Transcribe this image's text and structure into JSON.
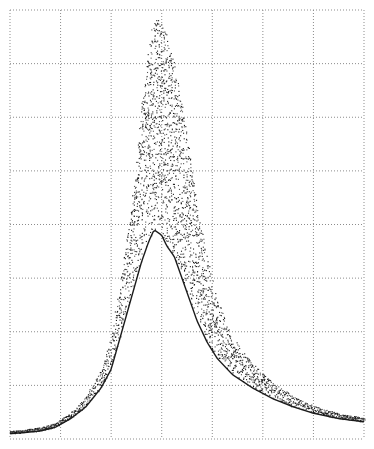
{
  "colors": {
    "background": "#ffffff",
    "grid": "#8c8c8c",
    "trace": "#1a1a1a",
    "trace_light": "#555555"
  },
  "chart_data": {
    "type": "line",
    "title": "",
    "xlabel": "",
    "ylabel": "",
    "grid": true,
    "grid_style": "dotted",
    "xlim": [
      0,
      7
    ],
    "ylim": [
      0,
      8
    ],
    "x_divisions": 7,
    "y_divisions": 8,
    "series": [
      {
        "style": "dense-noisy-trace",
        "upper_envelope": [
          [
            0.0,
            0.15
          ],
          [
            0.3,
            0.18
          ],
          [
            0.6,
            0.22
          ],
          [
            0.9,
            0.3
          ],
          [
            1.2,
            0.5
          ],
          [
            1.5,
            0.8
          ],
          [
            1.8,
            1.3
          ],
          [
            2.0,
            1.9
          ],
          [
            2.15,
            2.8
          ],
          [
            2.3,
            3.7
          ],
          [
            2.45,
            4.8
          ],
          [
            2.6,
            6.2
          ],
          [
            2.75,
            7.4
          ],
          [
            2.85,
            7.9
          ],
          [
            3.0,
            7.75
          ],
          [
            3.1,
            7.5
          ],
          [
            3.25,
            7.0
          ],
          [
            3.4,
            6.2
          ],
          [
            3.55,
            5.4
          ],
          [
            3.7,
            4.3
          ],
          [
            3.9,
            3.4
          ],
          [
            4.1,
            2.6
          ],
          [
            4.4,
            1.9
          ],
          [
            4.8,
            1.4
          ],
          [
            5.2,
            1.05
          ],
          [
            5.6,
            0.8
          ],
          [
            6.0,
            0.62
          ],
          [
            6.5,
            0.48
          ],
          [
            7.0,
            0.4
          ]
        ],
        "lower_envelope": [
          [
            0.0,
            0.1
          ],
          [
            0.3,
            0.12
          ],
          [
            0.6,
            0.15
          ],
          [
            0.9,
            0.22
          ],
          [
            1.2,
            0.38
          ],
          [
            1.5,
            0.6
          ],
          [
            1.8,
            0.95
          ],
          [
            2.0,
            1.3
          ],
          [
            2.15,
            1.8
          ],
          [
            2.3,
            2.3
          ],
          [
            2.45,
            2.8
          ],
          [
            2.6,
            3.3
          ],
          [
            2.75,
            3.7
          ],
          [
            2.85,
            3.9
          ],
          [
            3.0,
            3.8
          ],
          [
            3.1,
            3.6
          ],
          [
            3.25,
            3.4
          ],
          [
            3.4,
            3.0
          ],
          [
            3.55,
            2.6
          ],
          [
            3.7,
            2.2
          ],
          [
            3.9,
            1.8
          ],
          [
            4.1,
            1.5
          ],
          [
            4.4,
            1.2
          ],
          [
            4.8,
            0.95
          ],
          [
            5.2,
            0.75
          ],
          [
            5.6,
            0.6
          ],
          [
            6.0,
            0.48
          ],
          [
            6.5,
            0.38
          ],
          [
            7.0,
            0.32
          ]
        ]
      }
    ]
  }
}
